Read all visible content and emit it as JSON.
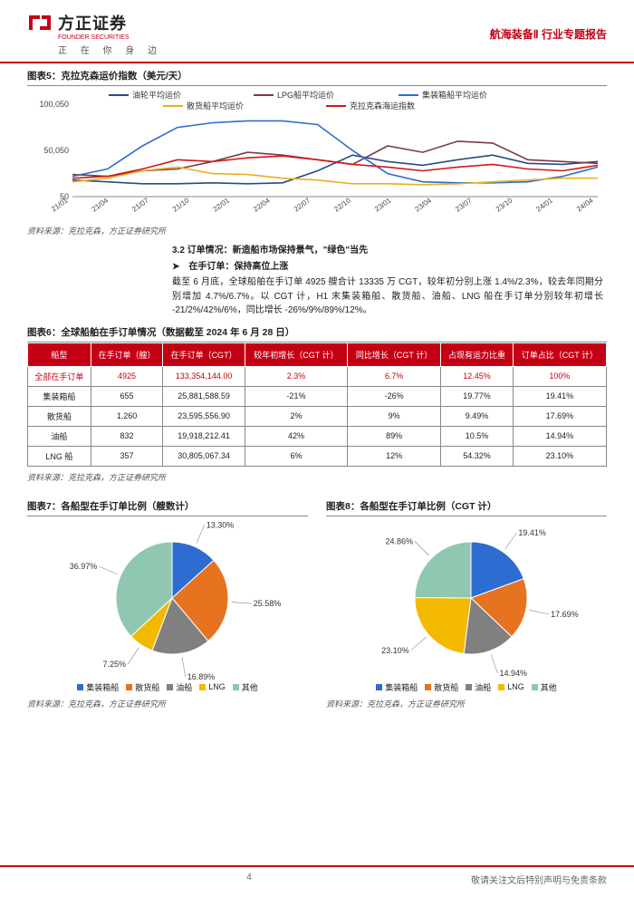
{
  "header": {
    "logo_cn": "方正证券",
    "logo_en": "FOUNDER SECURITIES",
    "logo_tag": "正 在 你 身 边",
    "right": "航海装备Ⅱ 行业专题报告"
  },
  "chart5": {
    "title": "图表5：克拉克森运价指数（美元/天）",
    "source": "资料来源：克拉克森，方正证券研究所",
    "ylim": [
      50,
      100050
    ],
    "ytick_labels": [
      "50",
      "50,050",
      "100,050"
    ],
    "x_labels": [
      "21/01",
      "21/04",
      "21/07",
      "21/10",
      "22/01",
      "22/04",
      "22/07",
      "22/10",
      "23/01",
      "23/04",
      "23/07",
      "23/10",
      "24/01",
      "24/04"
    ],
    "legend": [
      {
        "label": "油轮平均运价",
        "color": "#2a4b7c"
      },
      {
        "label": "LPG船平均运价",
        "color": "#7a3a4a"
      },
      {
        "label": "集装箱船平均运价",
        "color": "#2d6cd0"
      },
      {
        "label": "散货船平均运价",
        "color": "#e8b020"
      },
      {
        "label": "克拉克森海运指数",
        "color": "#d01818"
      }
    ],
    "series": {
      "oil": {
        "color": "#2a4b7c",
        "y": [
          18000,
          16000,
          14000,
          14000,
          15000,
          14000,
          15000,
          28000,
          45000,
          38000,
          34000,
          40000,
          45000,
          36000,
          35000,
          38000
        ]
      },
      "lpg": {
        "color": "#7a3a4a",
        "y": [
          24000,
          22000,
          28000,
          30000,
          38000,
          48000,
          45000,
          40000,
          35000,
          55000,
          48000,
          60000,
          58000,
          40000,
          38000,
          36000
        ]
      },
      "container": {
        "color": "#2d6cd0",
        "y": [
          22000,
          30000,
          55000,
          75000,
          80000,
          82000,
          82000,
          78000,
          50000,
          25000,
          16000,
          15000,
          15000,
          16000,
          22000,
          32000
        ]
      },
      "bulk": {
        "color": "#e8b020",
        "y": [
          16000,
          20000,
          28000,
          32000,
          25000,
          24000,
          20000,
          18000,
          14000,
          14000,
          13000,
          14000,
          16000,
          18000,
          20000,
          20000
        ]
      },
      "index": {
        "color": "#d01818",
        "y": [
          20000,
          22000,
          30000,
          40000,
          38000,
          42000,
          44000,
          40000,
          35000,
          32000,
          28000,
          32000,
          35000,
          30000,
          28000,
          34000
        ]
      }
    }
  },
  "body": {
    "h3": "3.2 订单情况：新造船市场保持景气，\"绿色\"当先",
    "bullet": "➤　在手订单：保持高位上涨",
    "p1": "截至 6 月底，全球船舶在手订单 4925 艘合计 13335 万 CGT，较年初分别上涨 1.4%/2.3%，较去年同期分别增加 4.7%/6.7%。以 CGT 计，H1 末集装箱船、散货船、油船、LNG 船在手订单分别较年初增长 -21/2%/42%/6%，同比增长 -26%/9%/89%/12%。"
  },
  "table6": {
    "title": "图表6：全球船舶在手订单情况（数据截至 2024 年 6 月 28 日）",
    "source": "资料来源：克拉克森，方正证券研究所",
    "columns": [
      "船型",
      "在手订单（艘）",
      "在手订单（CGT）",
      "较年初增长（CGT 计）",
      "同比增长（CGT 计）",
      "占现有运力比重",
      "订单占比（CGT 计）"
    ],
    "rows": [
      [
        "全部在手订单",
        "4925",
        "133,354,144.00",
        "2.3%",
        "6.7%",
        "12.45%",
        "100%"
      ],
      [
        "集装箱船",
        "655",
        "25,881,588.59",
        "-21%",
        "-26%",
        "19.77%",
        "19.41%"
      ],
      [
        "散货船",
        "1,260",
        "23,595,556.90",
        "2%",
        "9%",
        "9.49%",
        "17.69%"
      ],
      [
        "油船",
        "832",
        "19,918,212.41",
        "42%",
        "89%",
        "10.5%",
        "14.94%"
      ],
      [
        "LNG 船",
        "357",
        "30,805,067.34",
        "6%",
        "12%",
        "54.32%",
        "23.10%"
      ]
    ]
  },
  "pies": {
    "source": "资料来源：克拉克森，方正证券研究所",
    "legend_labels": [
      "集装箱船",
      "散货船",
      "油船",
      "LNG",
      "其他"
    ],
    "colors": [
      "#2d6cd0",
      "#e67320",
      "#808080",
      "#f3b900",
      "#8fc7b0"
    ],
    "pie7": {
      "title": "图表7：各船型在手订单比例（艘数计）",
      "slices": [
        {
          "label": "13.30%",
          "value": 13.3
        },
        {
          "label": "25.58%",
          "value": 25.58
        },
        {
          "label": "16.89%",
          "value": 16.89
        },
        {
          "label": "7.25%",
          "value": 7.25
        },
        {
          "label": "36.97%",
          "value": 36.97
        }
      ]
    },
    "pie8": {
      "title": "图表8：各船型在手订单比例（CGT 计）",
      "slices": [
        {
          "label": "19.41%",
          "value": 19.41
        },
        {
          "label": "17.69%",
          "value": 17.69
        },
        {
          "label": "14.94%",
          "value": 14.94
        },
        {
          "label": "23.10%",
          "value": 23.1
        },
        {
          "label": "24.86%",
          "value": 24.86
        }
      ]
    }
  },
  "footer": {
    "page": "4",
    "disclaimer": "敬请关注文后特别声明与免责条款"
  }
}
